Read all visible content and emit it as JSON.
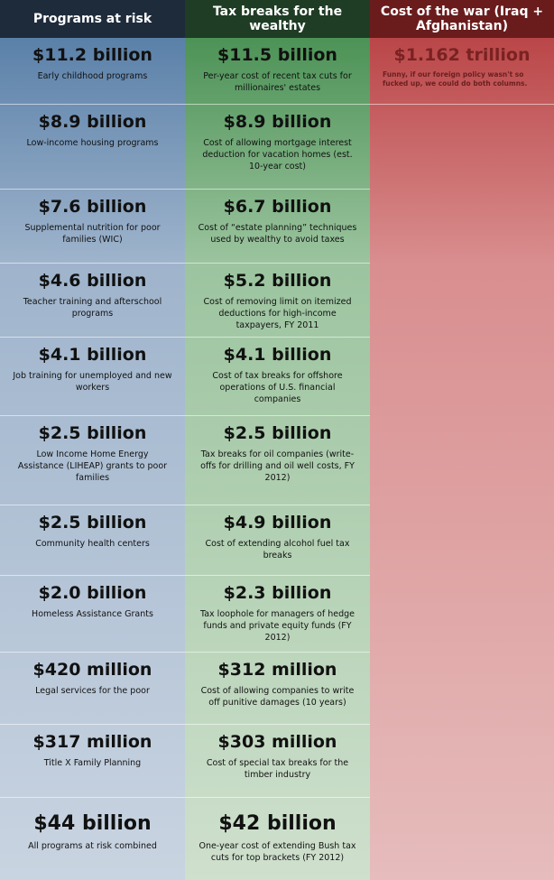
{
  "header": {
    "columns": [
      "Programs at risk",
      "Tax breaks for the wealthy",
      "Cost of the war (Iraq + Afghanistan)"
    ]
  },
  "war": {
    "amount": "$1.162 trillion",
    "note": "Funny, if our foreign policy wasn't so fucked up, we could do both columns."
  },
  "rows": [
    {
      "left": {
        "amount": "$11.2 billion",
        "label": "Early childhood programs"
      },
      "middle": {
        "amount": "$11.5 billion",
        "label": "Per-year cost of recent tax cuts for millionaires' estates"
      }
    },
    {
      "left": {
        "amount": "$8.9 billion",
        "label": "Low-income housing programs"
      },
      "middle": {
        "amount": "$8.9 billion",
        "label": "Cost of allowing mortgage interest deduction for vacation homes (est. 10-year cost)"
      }
    },
    {
      "left": {
        "amount": "$7.6 billion",
        "label": "Supplemental nutrition for poor families (WIC)"
      },
      "middle": {
        "amount": "$6.7 billion",
        "label": "Cost of “estate planning” techniques used by wealthy to avoid taxes"
      }
    },
    {
      "left": {
        "amount": "$4.6 billion",
        "label": "Teacher training and afterschool programs"
      },
      "middle": {
        "amount": "$5.2 billion",
        "label": "Cost of removing limit on itemized deductions for high-income taxpayers, FY 2011"
      }
    },
    {
      "left": {
        "amount": "$4.1 billion",
        "label": "Job training for unemployed and new workers"
      },
      "middle": {
        "amount": "$4.1 billion",
        "label": "Cost of tax breaks for offshore operations of U.S. financial companies"
      }
    },
    {
      "left": {
        "amount": "$2.5 billion",
        "label": "Low Income Home Energy Assistance (LIHEAP) grants to poor families"
      },
      "middle": {
        "amount": "$2.5 billion",
        "label": "Tax breaks for oil companies (write-offs for drilling and oil well costs, FY 2012)"
      }
    },
    {
      "left": {
        "amount": "$2.5 billion",
        "label": "Community health centers"
      },
      "middle": {
        "amount": "$4.9 billion",
        "label": "Cost of extending alcohol fuel tax breaks"
      }
    },
    {
      "left": {
        "amount": "$2.0 billion",
        "label": "Homeless Assistance Grants"
      },
      "middle": {
        "amount": "$2.3 billion",
        "label": "Tax loophole for managers of hedge funds and private equity funds (FY 2012)"
      }
    },
    {
      "left": {
        "amount": "$420 million",
        "label": "Legal services for the poor"
      },
      "middle": {
        "amount": "$312 million",
        "label": "Cost of allowing companies to write off punitive damages (10 years)"
      }
    },
    {
      "left": {
        "amount": "$317 million",
        "label": "Title X Family Planning"
      },
      "middle": {
        "amount": "$303 million",
        "label": "Cost of special tax breaks for the timber industry"
      }
    },
    {
      "left": {
        "amount": "$44 billion",
        "label": "All programs at risk combined"
      },
      "middle": {
        "amount": "$42 billion",
        "label": "One-year cost of extending Bush tax cuts for top brackets (FY 2012)"
      }
    }
  ]
}
